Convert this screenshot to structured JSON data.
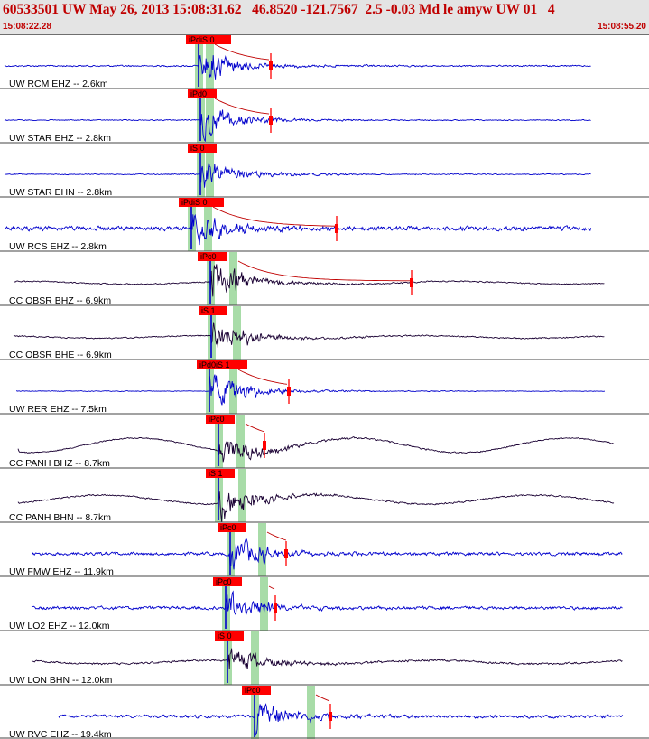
{
  "header": {
    "title": "60533501 UW May 26, 2013 15:08:31.62   46.8520 -121.7567  2.5 -0.03 Md le amyw UW 01   4",
    "start_time": "15:08:22.28",
    "end_time": "15:08:55.20"
  },
  "colors": {
    "header_bg": "#e4e4e4",
    "header_text": "#c00000",
    "blue_trace": "#0000cc",
    "dark_trace": "#1a0033",
    "pick_window": "#a8dca8",
    "pick_marker": "#ff0000",
    "coda_fit": "#c00000",
    "separator": "#444444"
  },
  "traces": [
    {
      "label": "UW RCM EHZ -- 2.6km",
      "pick": "iPdiS 0",
      "color": "blue",
      "start": 5,
      "end": 655,
      "p": 220,
      "s": 232,
      "coda": 300,
      "amp": 24,
      "noise": 1.2,
      "lf": 0
    },
    {
      "label": "UW STAR EHZ -- 2.8km",
      "pick": "iPd0",
      "color": "blue",
      "start": 5,
      "end": 655,
      "p": 222,
      "s": 232,
      "coda": 300,
      "amp": 24,
      "noise": 0.8,
      "lf": 0
    },
    {
      "label": "UW STAR EHN -- 2.8km",
      "pick": "iS 0",
      "color": "blue",
      "start": 5,
      "end": 655,
      "p": 222,
      "s": 232,
      "coda": 0,
      "amp": 22,
      "noise": 0.8,
      "lf": 0
    },
    {
      "label": "UW RCS EHZ -- 2.8km",
      "pick": "iPdiS 0",
      "color": "blue",
      "start": 5,
      "end": 655,
      "p": 212,
      "s": 230,
      "coda": 373,
      "amp": 26,
      "noise": 3.5,
      "lf": 0
    },
    {
      "label": "CC OBSR BHZ -- 6.9km",
      "pick": "iPc0",
      "color": "dark",
      "start": 15,
      "end": 670,
      "p": 233,
      "s": 258,
      "coda": 456,
      "amp": 26,
      "noise": 1.0,
      "lf": 1.5
    },
    {
      "label": "CC OBSR BHE -- 6.9km",
      "pick": "iS 1",
      "color": "dark",
      "start": 15,
      "end": 670,
      "p": 234,
      "s": 262,
      "coda": 0,
      "amp": 26,
      "noise": 1.0,
      "lf": 1.5
    },
    {
      "label": "UW RER EHZ -- 7.5km",
      "pick": "iPd0iS 1",
      "color": "blue",
      "start": 18,
      "end": 670,
      "p": 232,
      "s": 258,
      "coda": 320,
      "amp": 26,
      "noise": 0.6,
      "lf": 0
    },
    {
      "label": "CC PANH BHZ -- 8.7km",
      "pick": "iPc0",
      "color": "dark",
      "start": 20,
      "end": 680,
      "p": 242,
      "s": 266,
      "coda": 293,
      "amp": 20,
      "noise": 1.0,
      "lf": 8
    },
    {
      "label": "CC PANH BHN -- 8.7km",
      "pick": "iS 1",
      "color": "dark",
      "start": 20,
      "end": 680,
      "p": 242,
      "s": 268,
      "coda": 0,
      "amp": 24,
      "noise": 1.2,
      "lf": 5
    },
    {
      "label": "UW FMW EHZ -- 11.9km",
      "pick": "iPc0",
      "color": "blue",
      "start": 35,
      "end": 690,
      "p": 255,
      "s": 290,
      "coda": 317,
      "amp": 24,
      "noise": 2.5,
      "lf": 0
    },
    {
      "label": "UW LO2 EHZ -- 12.0km",
      "pick": "iPc0",
      "color": "blue",
      "start": 35,
      "end": 690,
      "p": 250,
      "s": 292,
      "coda": 305,
      "amp": 24,
      "noise": 2.5,
      "lf": 0
    },
    {
      "label": "UW LON BHN -- 12.0km",
      "pick": "iS 0",
      "color": "dark",
      "start": 35,
      "end": 690,
      "p": 252,
      "s": 282,
      "coda": 0,
      "amp": 18,
      "noise": 1.5,
      "lf": 2
    },
    {
      "label": "UW RVC EHZ -- 19.4km",
      "pick": "iPc0",
      "color": "blue",
      "start": 65,
      "end": 690,
      "p": 282,
      "s": 344,
      "coda": 366,
      "amp": 24,
      "noise": 2.5,
      "lf": 0
    }
  ]
}
